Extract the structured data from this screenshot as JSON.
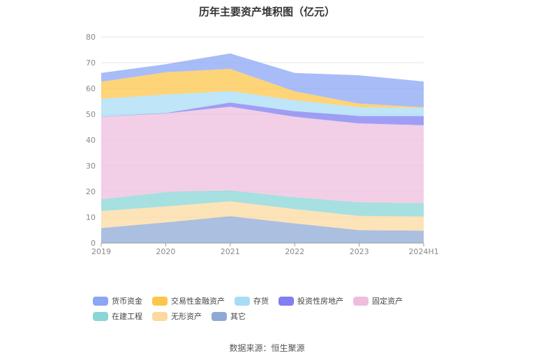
{
  "chart_data": {
    "type": "area",
    "stacked": true,
    "title": "历年主要资产堆积图（亿元）",
    "categories": [
      "2019",
      "2020",
      "2021",
      "2022",
      "2023",
      "2024H1"
    ],
    "ylim": [
      0,
      80
    ],
    "yticks": [
      0,
      10,
      20,
      30,
      40,
      50,
      60,
      70,
      80
    ],
    "grid": true,
    "legend_position": "bottom",
    "series": [
      {
        "name": "其它",
        "color": "#8fa9d6",
        "values": [
          5.8,
          8.0,
          10.4,
          7.6,
          5.0,
          4.8
        ]
      },
      {
        "name": "无形资产",
        "color": "#fcd9a0",
        "values": [
          6.6,
          6.2,
          5.8,
          5.6,
          5.5,
          5.5
        ]
      },
      {
        "name": "在建工程",
        "color": "#8ad6d6",
        "values": [
          4.6,
          5.6,
          4.2,
          4.6,
          5.3,
          5.2
        ]
      },
      {
        "name": "固定资产",
        "color": "#eebfdd",
        "values": [
          32.0,
          30.5,
          32.5,
          31.2,
          30.6,
          30.2
        ]
      },
      {
        "name": "投资性房地产",
        "color": "#7f7ef2",
        "values": [
          0.1,
          0.2,
          1.6,
          2.2,
          2.9,
          3.6
        ]
      },
      {
        "name": "存货",
        "color": "#a8dcf5",
        "values": [
          6.9,
          7.1,
          4.5,
          4.2,
          3.4,
          3.1
        ]
      },
      {
        "name": "交易性金融资产",
        "color": "#fcc64a",
        "values": [
          6.6,
          8.7,
          8.6,
          3.5,
          1.4,
          0.3
        ]
      },
      {
        "name": "货币资金",
        "color": "#8ba6f5",
        "values": [
          3.4,
          3.1,
          6.0,
          7.1,
          11.0,
          10.0
        ]
      }
    ]
  },
  "legend_items": [
    {
      "name": "货币资金",
      "color": "#8ba6f5"
    },
    {
      "name": "交易性金融资产",
      "color": "#fcc64a"
    },
    {
      "name": "存货",
      "color": "#a8dcf5"
    },
    {
      "name": "投资性房地产",
      "color": "#7f7ef2"
    },
    {
      "name": "固定资产",
      "color": "#eebfdd"
    },
    {
      "name": "在建工程",
      "color": "#8ad6d6"
    },
    {
      "name": "无形资产",
      "color": "#fcd9a0"
    },
    {
      "name": "其它",
      "color": "#8fa9d6"
    }
  ],
  "source": "数据来源：恒生聚源"
}
